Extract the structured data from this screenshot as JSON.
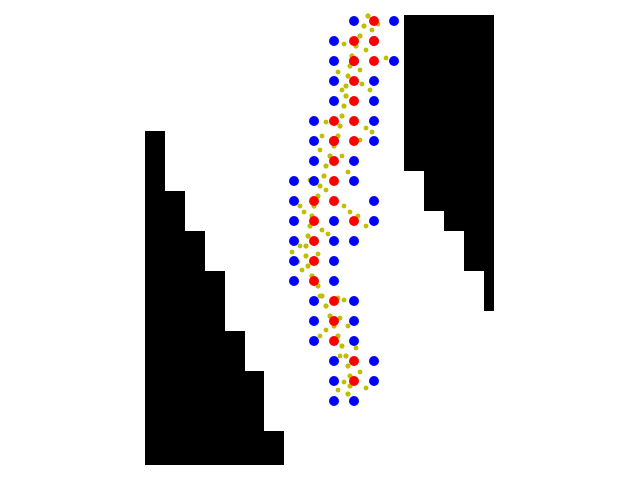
{
  "colors": {
    "background": "#ffffff",
    "wall": "#000000",
    "agent": "#0000ff",
    "visited": "#ff0000",
    "trail": "#bfbf00"
  },
  "scene": {
    "walls": [
      "left-wall-staircase",
      "right-wall-staircase"
    ],
    "markers": [
      "blue-dot",
      "red-dot",
      "yellow-trail-dot"
    ]
  }
}
